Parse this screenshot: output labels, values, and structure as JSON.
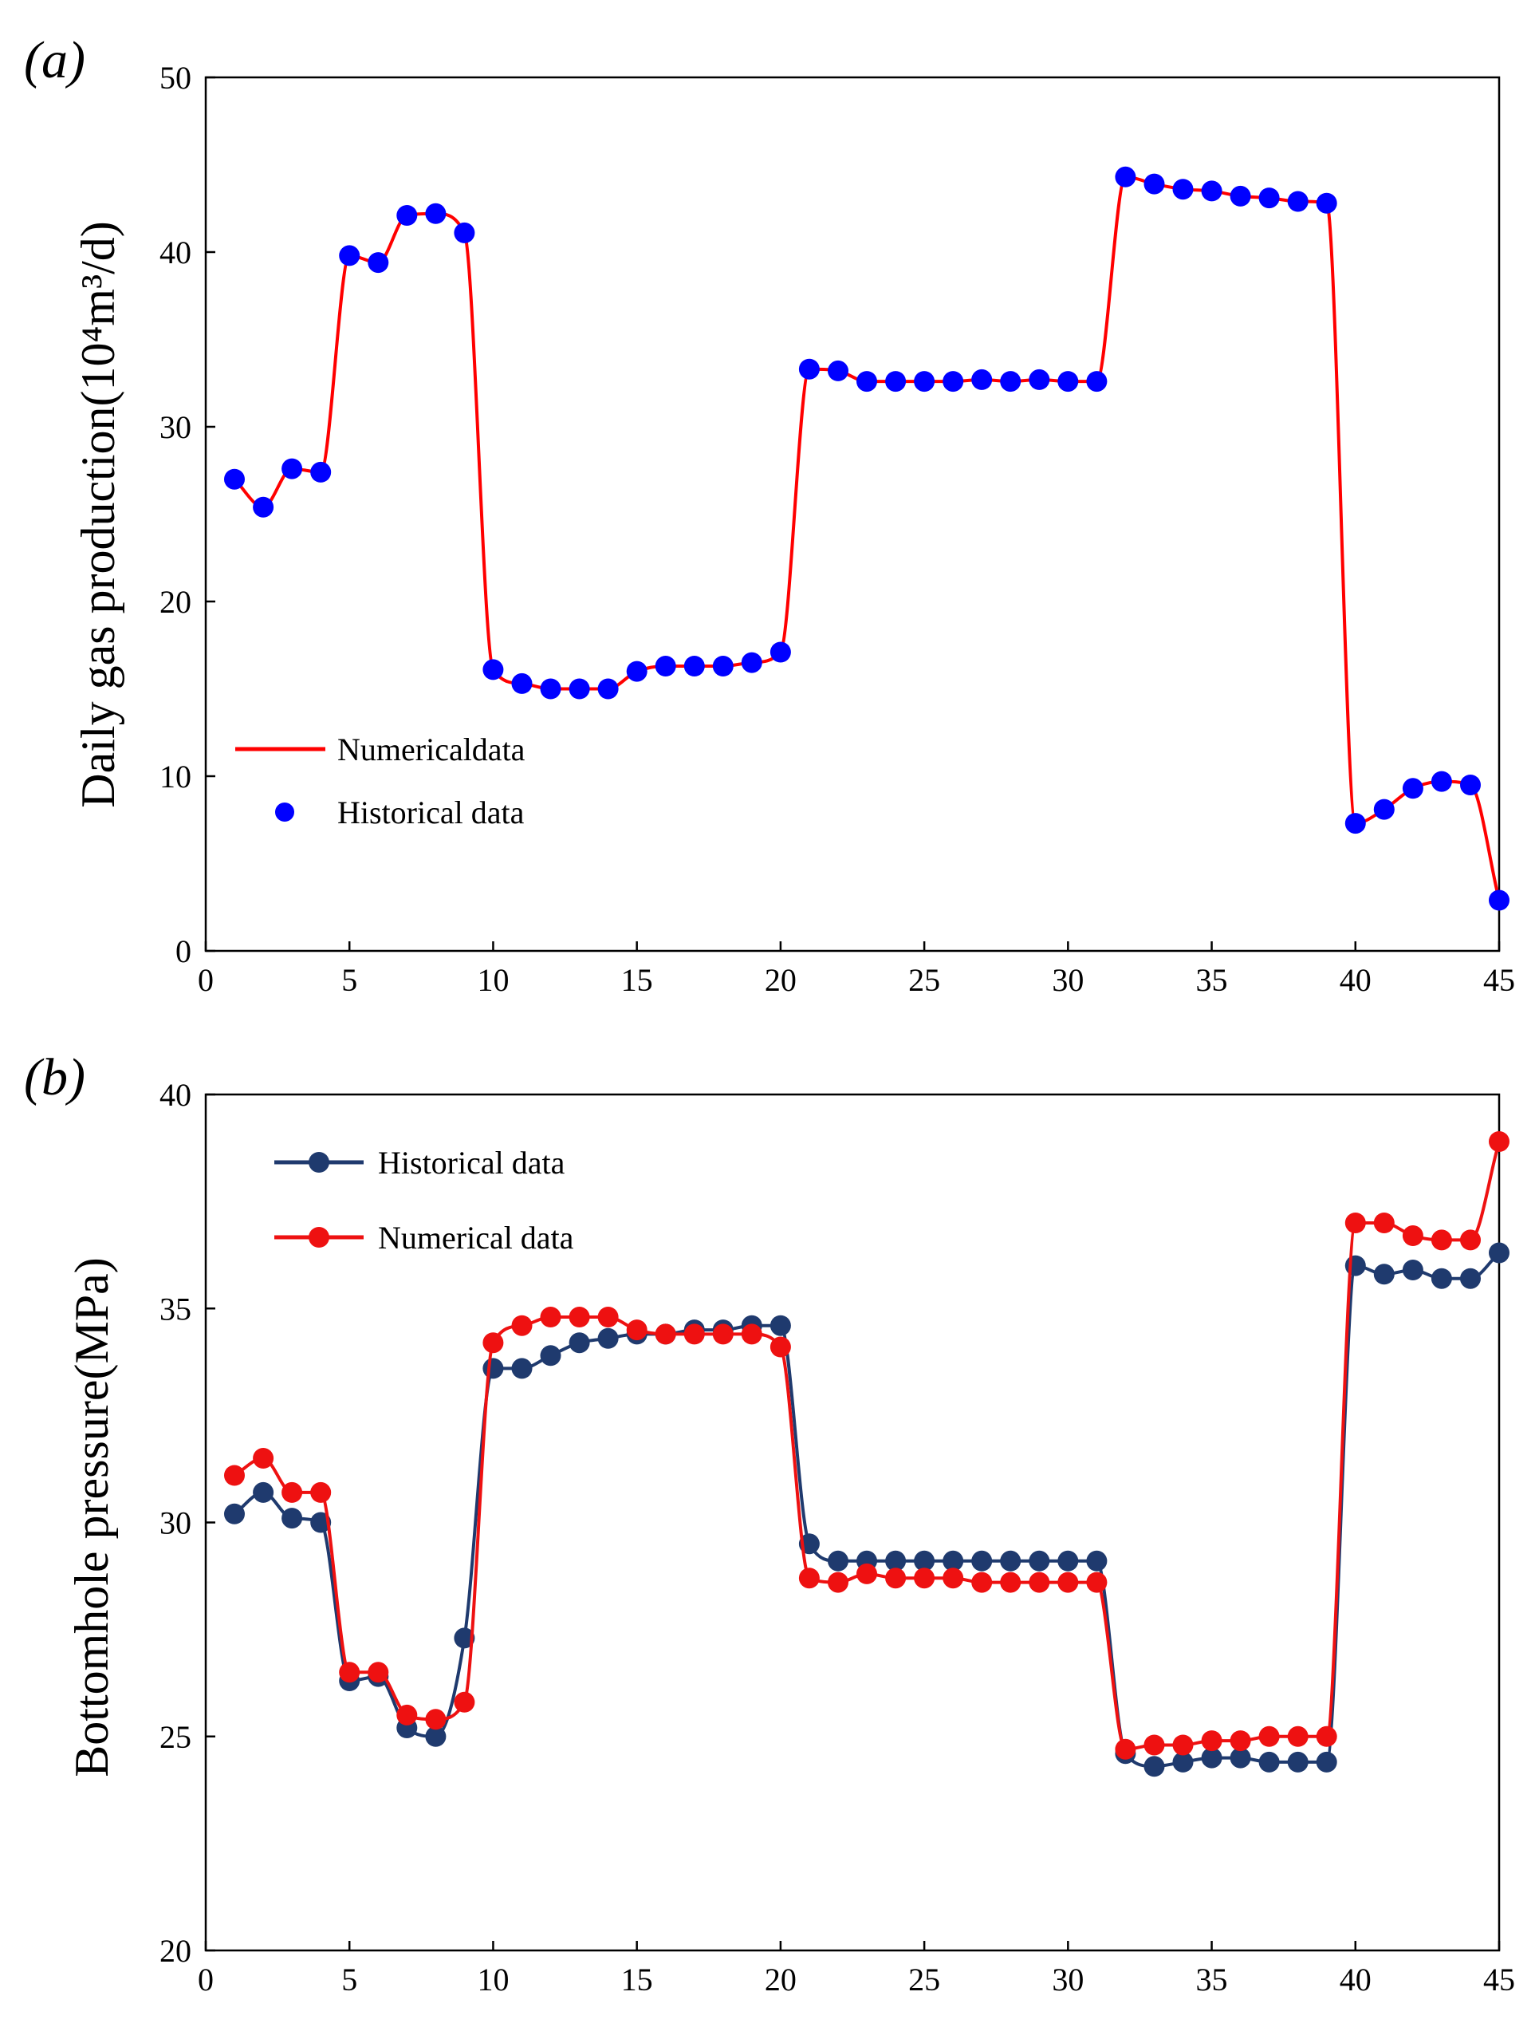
{
  "chart_data": [
    {
      "type": "line",
      "panel_label": "(a)",
      "title": "",
      "xlabel": "",
      "ylabel": "Daily gas production(10⁴m³/d)",
      "xlim": [
        0,
        45
      ],
      "ylim": [
        0,
        50
      ],
      "xticks": [
        0,
        5,
        10,
        15,
        20,
        25,
        30,
        35,
        40,
        45
      ],
      "yticks": [
        0,
        10,
        20,
        30,
        40,
        50
      ],
      "grid": false,
      "legend_position": "center-left",
      "series": [
        {
          "name": "Numericaldata",
          "style": "smooth-line",
          "color": "#ff0000",
          "x": [
            1,
            2,
            3,
            4,
            5,
            6,
            7,
            8,
            9,
            10,
            11,
            12,
            13,
            14,
            15,
            16,
            17,
            18,
            19,
            20,
            21,
            22,
            23,
            24,
            25,
            26,
            27,
            28,
            29,
            30,
            31,
            32,
            33,
            34,
            35,
            36,
            37,
            38,
            39,
            40,
            41,
            42,
            43,
            44,
            45
          ],
          "values": [
            27.0,
            25.4,
            27.6,
            27.4,
            39.8,
            39.4,
            42.1,
            42.2,
            41.1,
            16.1,
            15.3,
            15.0,
            15.0,
            15.0,
            16.0,
            16.3,
            16.3,
            16.3,
            16.5,
            17.1,
            33.3,
            33.2,
            32.6,
            32.6,
            32.6,
            32.6,
            32.7,
            32.6,
            32.7,
            32.6,
            32.6,
            44.3,
            43.9,
            43.6,
            43.5,
            43.2,
            43.1,
            42.9,
            42.8,
            7.3,
            8.1,
            9.3,
            9.7,
            9.5,
            2.9
          ]
        },
        {
          "name": "Historical data",
          "style": "markers",
          "color": "#0000ff",
          "x": [
            1,
            2,
            3,
            4,
            5,
            6,
            7,
            8,
            9,
            10,
            11,
            12,
            13,
            14,
            15,
            16,
            17,
            18,
            19,
            20,
            21,
            22,
            23,
            24,
            25,
            26,
            27,
            28,
            29,
            30,
            31,
            32,
            33,
            34,
            35,
            36,
            37,
            38,
            39,
            40,
            41,
            42,
            43,
            44,
            45
          ],
          "values": [
            27.0,
            25.4,
            27.6,
            27.4,
            39.8,
            39.4,
            42.1,
            42.2,
            41.1,
            16.1,
            15.3,
            15.0,
            15.0,
            15.0,
            16.0,
            16.3,
            16.3,
            16.3,
            16.5,
            17.1,
            33.3,
            33.2,
            32.6,
            32.6,
            32.6,
            32.6,
            32.7,
            32.6,
            32.7,
            32.6,
            32.6,
            44.3,
            43.9,
            43.6,
            43.5,
            43.2,
            43.1,
            42.9,
            42.8,
            7.3,
            8.1,
            9.3,
            9.7,
            9.5,
            2.9
          ]
        }
      ]
    },
    {
      "type": "line",
      "panel_label": "(b)",
      "title": "",
      "xlabel": "",
      "ylabel": "Bottomhole  pressure(MPa)",
      "xlim": [
        0,
        45
      ],
      "ylim": [
        20,
        40
      ],
      "xticks": [
        0,
        5,
        10,
        15,
        20,
        25,
        30,
        35,
        40,
        45
      ],
      "yticks": [
        20,
        25,
        30,
        35,
        40
      ],
      "grid": false,
      "legend_position": "top-left",
      "series": [
        {
          "name": "Historical data",
          "style": "line-markers",
          "color": "#1f3a6e",
          "x": [
            1,
            2,
            3,
            4,
            5,
            6,
            7,
            8,
            9,
            10,
            11,
            12,
            13,
            14,
            15,
            16,
            17,
            18,
            19,
            20,
            21,
            22,
            23,
            24,
            25,
            26,
            27,
            28,
            29,
            30,
            31,
            32,
            33,
            34,
            35,
            36,
            37,
            38,
            39,
            40,
            41,
            42,
            43,
            44,
            45
          ],
          "values": [
            30.2,
            30.7,
            30.1,
            30.0,
            26.3,
            26.4,
            25.2,
            25.0,
            27.3,
            33.6,
            33.6,
            33.9,
            34.2,
            34.3,
            34.4,
            34.4,
            34.5,
            34.5,
            34.6,
            34.6,
            29.5,
            29.1,
            29.1,
            29.1,
            29.1,
            29.1,
            29.1,
            29.1,
            29.1,
            29.1,
            29.1,
            24.6,
            24.3,
            24.4,
            24.5,
            24.5,
            24.4,
            24.4,
            24.4,
            36.0,
            35.8,
            35.9,
            35.7,
            35.7,
            36.3
          ]
        },
        {
          "name": "Numerical data",
          "style": "line-markers",
          "color": "#ee1111",
          "x": [
            1,
            2,
            3,
            4,
            5,
            6,
            7,
            8,
            9,
            10,
            11,
            12,
            13,
            14,
            15,
            16,
            17,
            18,
            19,
            20,
            21,
            22,
            23,
            24,
            25,
            26,
            27,
            28,
            29,
            30,
            31,
            32,
            33,
            34,
            35,
            36,
            37,
            38,
            39,
            40,
            41,
            42,
            43,
            44,
            45
          ],
          "values": [
            31.1,
            31.5,
            30.7,
            30.7,
            26.5,
            26.5,
            25.5,
            25.4,
            25.8,
            34.2,
            34.6,
            34.8,
            34.8,
            34.8,
            34.5,
            34.4,
            34.4,
            34.4,
            34.4,
            34.1,
            28.7,
            28.6,
            28.8,
            28.7,
            28.7,
            28.7,
            28.6,
            28.6,
            28.6,
            28.6,
            28.6,
            24.7,
            24.8,
            24.8,
            24.9,
            24.9,
            25.0,
            25.0,
            25.0,
            37.0,
            37.0,
            36.7,
            36.6,
            36.6,
            38.9
          ]
        }
      ]
    }
  ]
}
